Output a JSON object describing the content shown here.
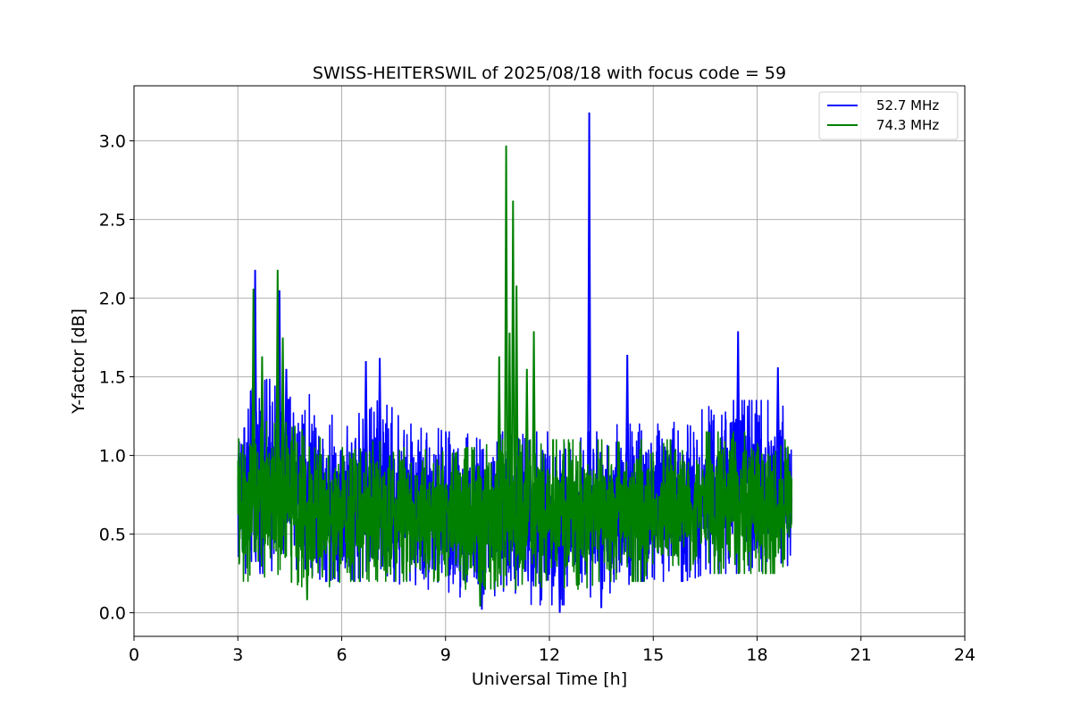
{
  "chart_data": {
    "type": "line",
    "title": "SWISS-HEITERSWIL of 2025/08/18 with focus code = 59",
    "xlabel": "Universal Time [h]",
    "ylabel": "Y-factor [dB]",
    "xlim": [
      0,
      24
    ],
    "ylim": [
      -0.15,
      3.35
    ],
    "xticks": [
      0,
      3,
      6,
      9,
      12,
      15,
      18,
      21,
      24
    ],
    "xtick_labels": [
      "0",
      "3",
      "6",
      "9",
      "12",
      "15",
      "18",
      "21",
      "24"
    ],
    "yticks": [
      0.0,
      0.5,
      1.0,
      1.5,
      2.0,
      2.5,
      3.0
    ],
    "ytick_labels": [
      "0.0",
      "0.5",
      "1.0",
      "1.5",
      "2.0",
      "2.5",
      "3.0"
    ],
    "grid": true,
    "legend_position": "top-right",
    "series": [
      {
        "name": "52.7 MHz",
        "color": "#0000ff",
        "x_range": [
          3.0,
          19.0
        ],
        "envelope": {
          "x": [
            3.0,
            3.5,
            4.0,
            4.5,
            5.0,
            5.5,
            6.0,
            6.5,
            7.0,
            7.5,
            8.0,
            8.5,
            9.0,
            9.5,
            10.0,
            10.5,
            11.0,
            11.5,
            12.0,
            12.5,
            13.0,
            13.5,
            14.0,
            14.5,
            15.0,
            15.5,
            16.0,
            16.5,
            17.0,
            17.5,
            18.0,
            18.5,
            19.0
          ],
          "max": [
            1.3,
            1.45,
            1.5,
            1.45,
            1.4,
            1.3,
            1.2,
            1.3,
            1.35,
            1.3,
            1.2,
            1.2,
            1.15,
            1.15,
            1.1,
            1.15,
            1.15,
            1.15,
            1.15,
            1.15,
            1.15,
            1.15,
            1.2,
            1.2,
            1.2,
            1.2,
            1.25,
            1.3,
            1.35,
            1.35,
            1.35,
            1.35,
            1.3
          ],
          "min": [
            0.25,
            0.25,
            0.25,
            0.25,
            0.25,
            0.2,
            0.2,
            0.2,
            0.2,
            0.2,
            0.15,
            0.15,
            0.1,
            0.1,
            0.1,
            0.1,
            0.1,
            0.05,
            0.05,
            0.05,
            0.1,
            0.1,
            0.15,
            0.2,
            0.2,
            0.2,
            0.2,
            0.25,
            0.25,
            0.25,
            0.25,
            0.3,
            0.3
          ]
        },
        "spikes": [
          {
            "x": 3.5,
            "y": 2.18
          },
          {
            "x": 4.2,
            "y": 2.05
          },
          {
            "x": 4.4,
            "y": 1.55
          },
          {
            "x": 6.7,
            "y": 1.6
          },
          {
            "x": 7.1,
            "y": 1.62
          },
          {
            "x": 13.15,
            "y": 3.18
          },
          {
            "x": 14.25,
            "y": 1.64
          },
          {
            "x": 17.45,
            "y": 1.79
          },
          {
            "x": 18.6,
            "y": 1.56
          },
          {
            "x": 10.05,
            "y": 0.02
          },
          {
            "x": 12.3,
            "y": 0.0
          },
          {
            "x": 13.5,
            "y": 0.03
          }
        ]
      },
      {
        "name": "74.3 MHz",
        "color": "#008000",
        "x_range": [
          3.0,
          19.0
        ],
        "envelope": {
          "x": [
            3.0,
            3.5,
            4.0,
            4.5,
            5.0,
            5.5,
            6.0,
            6.5,
            7.0,
            7.5,
            8.0,
            8.5,
            9.0,
            9.5,
            10.0,
            10.5,
            11.0,
            11.5,
            12.0,
            12.5,
            13.0,
            13.5,
            14.0,
            14.5,
            15.0,
            15.5,
            16.0,
            16.5,
            17.0,
            17.5,
            18.0,
            18.5,
            19.0
          ],
          "max": [
            1.1,
            1.2,
            1.25,
            1.2,
            1.15,
            1.1,
            1.05,
            1.05,
            1.1,
            1.05,
            1.05,
            1.05,
            1.05,
            1.05,
            1.05,
            1.1,
            1.1,
            1.1,
            1.1,
            1.1,
            1.1,
            1.1,
            1.1,
            1.1,
            1.1,
            1.1,
            1.1,
            1.15,
            1.15,
            1.15,
            1.15,
            1.1,
            1.1
          ],
          "min": [
            0.2,
            0.2,
            0.25,
            0.2,
            0.15,
            0.15,
            0.2,
            0.2,
            0.2,
            0.2,
            0.2,
            0.2,
            0.2,
            0.15,
            0.15,
            0.15,
            0.15,
            0.15,
            0.15,
            0.15,
            0.15,
            0.2,
            0.2,
            0.2,
            0.2,
            0.25,
            0.25,
            0.25,
            0.25,
            0.25,
            0.25,
            0.25,
            0.3
          ]
        },
        "spikes": [
          {
            "x": 3.45,
            "y": 2.06
          },
          {
            "x": 3.7,
            "y": 1.63
          },
          {
            "x": 4.15,
            "y": 2.18
          },
          {
            "x": 4.3,
            "y": 1.75
          },
          {
            "x": 10.55,
            "y": 1.63
          },
          {
            "x": 10.75,
            "y": 2.97
          },
          {
            "x": 10.85,
            "y": 1.78
          },
          {
            "x": 10.95,
            "y": 2.62
          },
          {
            "x": 11.05,
            "y": 2.08
          },
          {
            "x": 11.35,
            "y": 1.55
          },
          {
            "x": 11.55,
            "y": 1.79
          },
          {
            "x": 5.0,
            "y": 0.08
          },
          {
            "x": 10.0,
            "y": 0.04
          }
        ]
      }
    ]
  }
}
